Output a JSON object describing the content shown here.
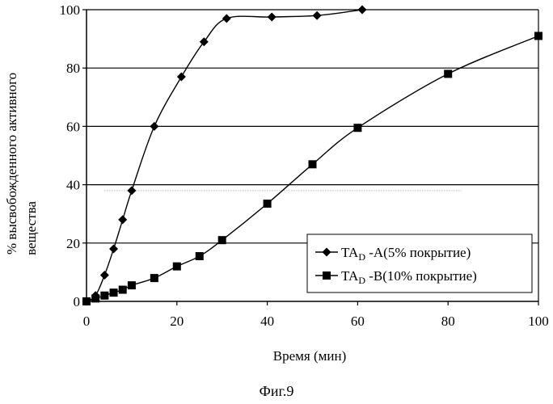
{
  "chart_data": {
    "type": "line",
    "title": "",
    "caption": "Фиг.9",
    "xlabel": "Время (мин)",
    "ylabel_line1": "% высвобожденного активного",
    "ylabel_line2": "вещества",
    "xlim": [
      0,
      100
    ],
    "ylim": [
      0,
      100
    ],
    "xticks": [
      0,
      20,
      40,
      60,
      80,
      100
    ],
    "yticks": [
      0,
      20,
      40,
      60,
      80,
      100
    ],
    "grid": "horizontal",
    "legend_position": "bottom-right",
    "series": [
      {
        "label_main": "TA",
        "label_sub": "D",
        "label_rest": " -A(5% покрытие)",
        "marker": "diamond",
        "color": "#000000",
        "x": [
          0,
          2,
          4,
          6,
          8,
          10,
          15,
          21,
          26,
          31,
          41,
          51,
          61
        ],
        "y": [
          0,
          2,
          9,
          18,
          28,
          38,
          60,
          77,
          89,
          97,
          97.5,
          98,
          100
        ]
      },
      {
        "label_main": "TA",
        "label_sub": "D",
        "label_rest": " -B(10% покрытие)",
        "marker": "square",
        "color": "#000000",
        "x": [
          0,
          2,
          4,
          6,
          8,
          10,
          15,
          20,
          25,
          30,
          40,
          50,
          60,
          80,
          100
        ],
        "y": [
          0,
          1,
          2,
          3,
          4,
          5.5,
          8,
          12,
          15.5,
          21,
          33.5,
          47,
          59.5,
          78,
          91
        ]
      }
    ]
  }
}
